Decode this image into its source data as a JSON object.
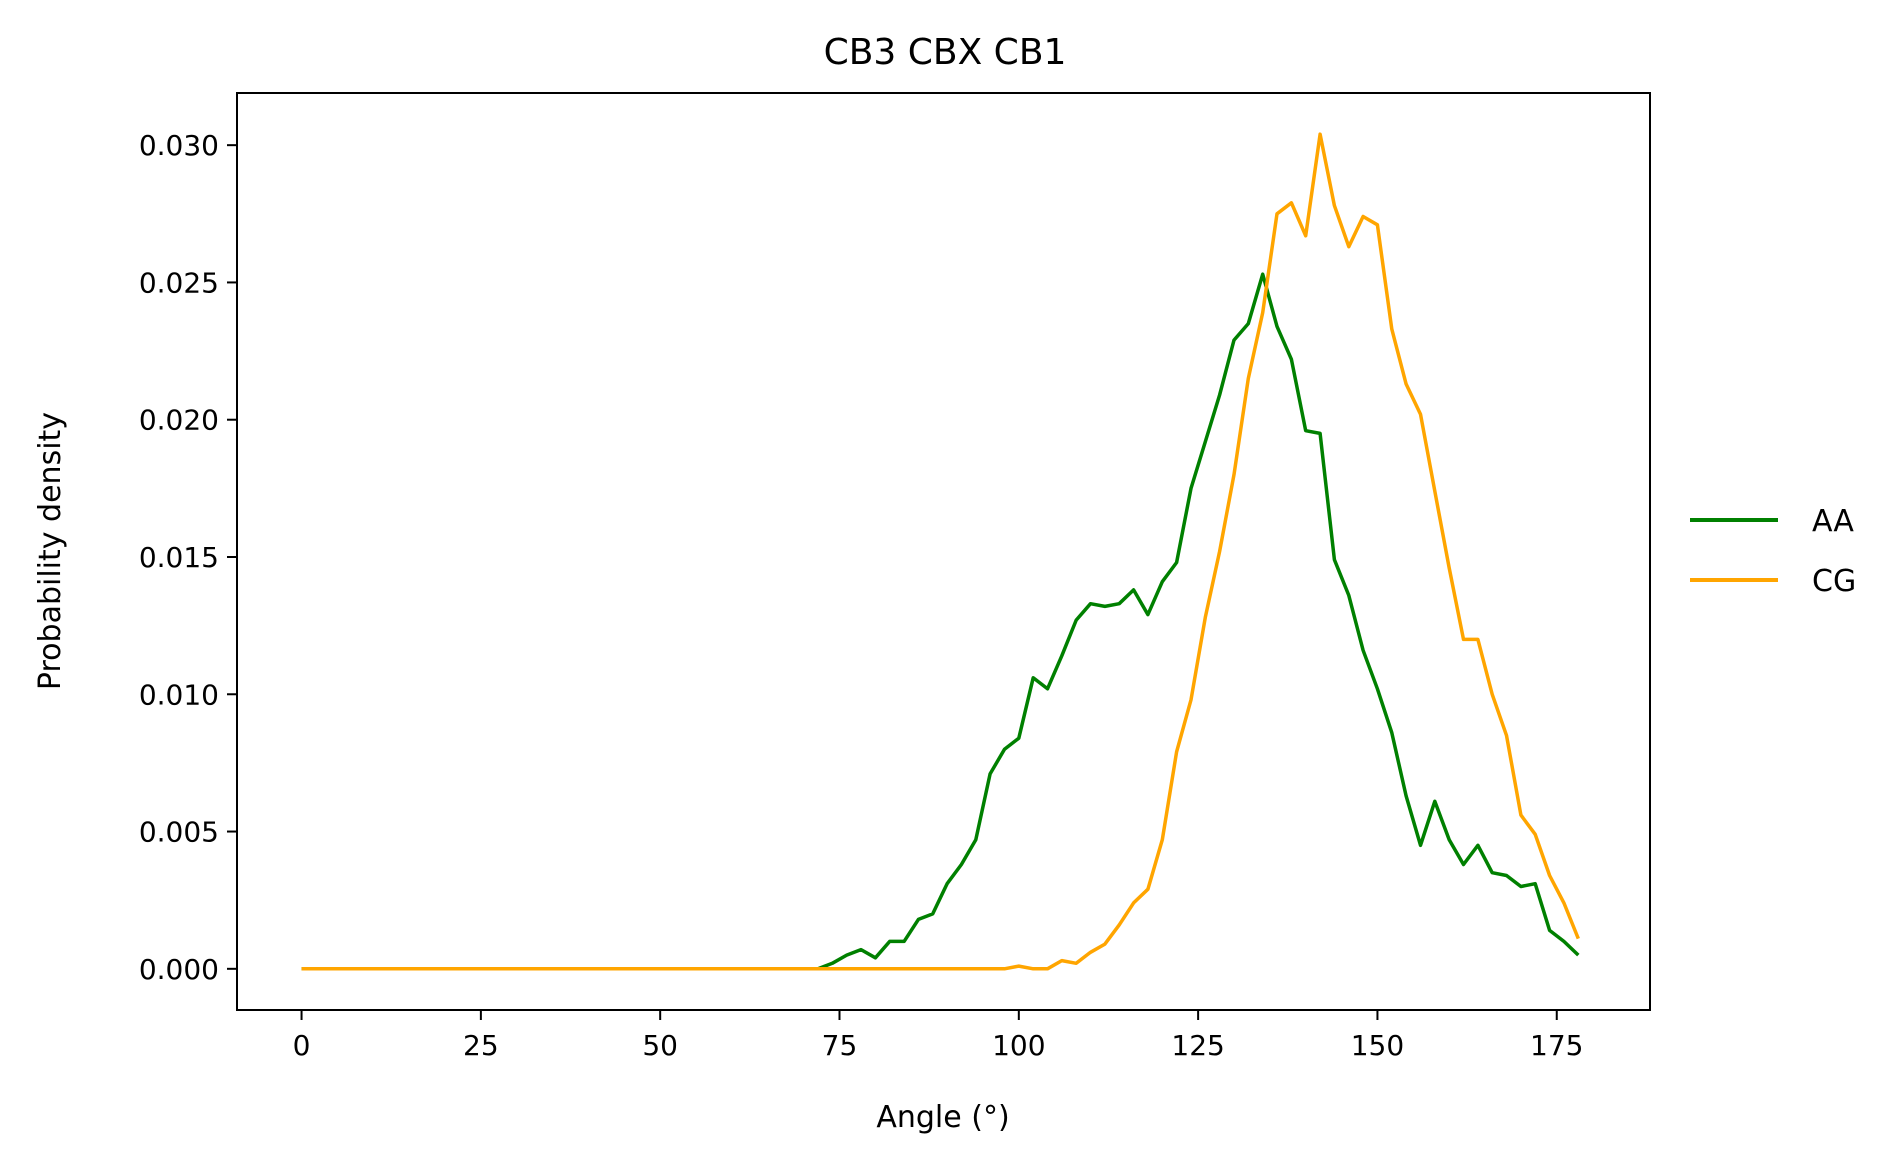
{
  "chart_data": {
    "type": "line",
    "title": "CB3 CBX CB1",
    "xlabel": "Angle (°)",
    "ylabel": "Probability density",
    "xlim": [
      -9,
      188
    ],
    "ylim": [
      -0.0015,
      0.0319
    ],
    "xticks": [
      0,
      25,
      50,
      75,
      100,
      125,
      150,
      175
    ],
    "xtick_labels": [
      "0",
      "25",
      "50",
      "75",
      "100",
      "125",
      "150",
      "175"
    ],
    "yticks": [
      0.0,
      0.005,
      0.01,
      0.015,
      0.02,
      0.025,
      0.03
    ],
    "ytick_labels": [
      "0.000",
      "0.005",
      "0.010",
      "0.015",
      "0.020",
      "0.025",
      "0.030"
    ],
    "grid": false,
    "legend_position": "outside-right",
    "series": [
      {
        "name": "AA",
        "color": "#008000",
        "points": [
          [
            0,
            0
          ],
          [
            72,
            0
          ],
          [
            74,
            0.0002
          ],
          [
            76,
            0.0005
          ],
          [
            78,
            0.0007
          ],
          [
            80,
            0.0004
          ],
          [
            82,
            0.001
          ],
          [
            84,
            0.001
          ],
          [
            86,
            0.0018
          ],
          [
            88,
            0.002
          ],
          [
            90,
            0.0031
          ],
          [
            92,
            0.0038
          ],
          [
            94,
            0.0047
          ],
          [
            96,
            0.0071
          ],
          [
            98,
            0.008
          ],
          [
            100,
            0.0084
          ],
          [
            102,
            0.0106
          ],
          [
            104,
            0.0102
          ],
          [
            106,
            0.0114
          ],
          [
            108,
            0.0127
          ],
          [
            110,
            0.0133
          ],
          [
            112,
            0.0132
          ],
          [
            114,
            0.0133
          ],
          [
            116,
            0.0138
          ],
          [
            118,
            0.0129
          ],
          [
            120,
            0.0141
          ],
          [
            122,
            0.0148
          ],
          [
            124,
            0.0175
          ],
          [
            126,
            0.0192
          ],
          [
            128,
            0.0209
          ],
          [
            130,
            0.0229
          ],
          [
            132,
            0.0235
          ],
          [
            134,
            0.0253
          ],
          [
            136,
            0.0234
          ],
          [
            138,
            0.0222
          ],
          [
            140,
            0.0196
          ],
          [
            142,
            0.0195
          ],
          [
            144,
            0.0149
          ],
          [
            146,
            0.0136
          ],
          [
            148,
            0.0116
          ],
          [
            150,
            0.0102
          ],
          [
            152,
            0.0086
          ],
          [
            154,
            0.0063
          ],
          [
            156,
            0.0045
          ],
          [
            158,
            0.0061
          ],
          [
            160,
            0.0047
          ],
          [
            162,
            0.0038
          ],
          [
            164,
            0.0045
          ],
          [
            166,
            0.0035
          ],
          [
            168,
            0.0034
          ],
          [
            170,
            0.003
          ],
          [
            172,
            0.0031
          ],
          [
            174,
            0.0014
          ],
          [
            176,
            0.001
          ],
          [
            178,
            0.0005
          ]
        ]
      },
      {
        "name": "CG",
        "color": "#ffa500",
        "points": [
          [
            0,
            0
          ],
          [
            98,
            0
          ],
          [
            100,
            0.0001
          ],
          [
            102,
            0
          ],
          [
            104,
            0
          ],
          [
            106,
            0.0003
          ],
          [
            108,
            0.0002
          ],
          [
            110,
            0.0006
          ],
          [
            112,
            0.0009
          ],
          [
            114,
            0.0016
          ],
          [
            116,
            0.0024
          ],
          [
            118,
            0.0029
          ],
          [
            120,
            0.0047
          ],
          [
            122,
            0.0079
          ],
          [
            124,
            0.0098
          ],
          [
            126,
            0.0128
          ],
          [
            128,
            0.0152
          ],
          [
            130,
            0.018
          ],
          [
            132,
            0.0215
          ],
          [
            134,
            0.0239
          ],
          [
            136,
            0.0275
          ],
          [
            138,
            0.0279
          ],
          [
            140,
            0.0267
          ],
          [
            142,
            0.0304
          ],
          [
            144,
            0.0278
          ],
          [
            146,
            0.0263
          ],
          [
            148,
            0.0274
          ],
          [
            150,
            0.0271
          ],
          [
            152,
            0.0233
          ],
          [
            154,
            0.0213
          ],
          [
            156,
            0.0202
          ],
          [
            158,
            0.0174
          ],
          [
            160,
            0.0146
          ],
          [
            162,
            0.012
          ],
          [
            164,
            0.012
          ],
          [
            166,
            0.01
          ],
          [
            168,
            0.0085
          ],
          [
            170,
            0.0056
          ],
          [
            172,
            0.0049
          ],
          [
            174,
            0.0034
          ],
          [
            176,
            0.0024
          ],
          [
            178,
            0.0011
          ]
        ]
      }
    ]
  }
}
